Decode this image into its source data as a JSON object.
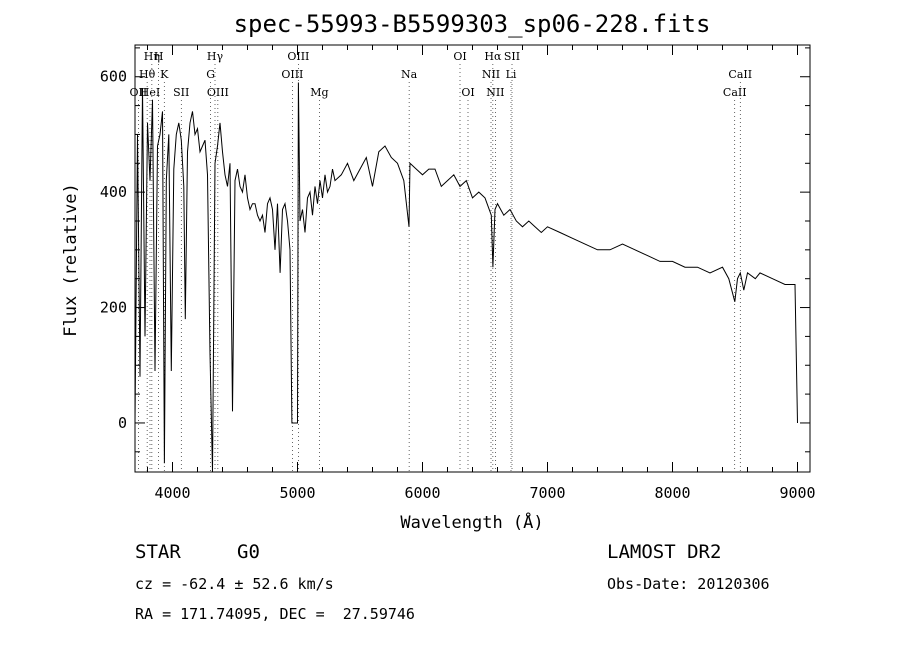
{
  "chart_data": {
    "type": "line",
    "title": "spec-55993-B5599303_sp06-228.fits",
    "xlabel": "Wavelength (Å)",
    "ylabel": "Flux (relative)",
    "xlim": [
      3700,
      9100
    ],
    "ylim": [
      -85,
      655
    ],
    "xticks": [
      4000,
      5000,
      6000,
      7000,
      8000,
      9000
    ],
    "yticks": [
      0,
      200,
      400,
      600
    ],
    "grid": false,
    "series": [
      {
        "x": [
          3700,
          3720,
          3740,
          3760,
          3780,
          3800,
          3820,
          3840,
          3860,
          3880,
          3900,
          3920,
          3935,
          3950,
          3970,
          3990,
          4010,
          4030,
          4050,
          4070,
          4090,
          4102,
          4120,
          4140,
          4160,
          4180,
          4200,
          4220,
          4240,
          4260,
          4280,
          4300,
          4320,
          4340,
          4360,
          4380,
          4400,
          4420,
          4440,
          4460,
          4480,
          4500,
          4520,
          4540,
          4560,
          4580,
          4600,
          4620,
          4640,
          4660,
          4680,
          4700,
          4720,
          4740,
          4760,
          4780,
          4800,
          4820,
          4840,
          4861,
          4880,
          4900,
          4920,
          4940,
          4955,
          4965,
          4980,
          5000,
          5007,
          5020,
          5040,
          5060,
          5080,
          5100,
          5120,
          5140,
          5160,
          5180,
          5200,
          5220,
          5240,
          5260,
          5280,
          5300,
          5350,
          5400,
          5450,
          5500,
          5550,
          5600,
          5650,
          5700,
          5750,
          5800,
          5850,
          5892,
          5900,
          5950,
          6000,
          6050,
          6100,
          6150,
          6200,
          6250,
          6300,
          6350,
          6400,
          6450,
          6500,
          6550,
          6563,
          6580,
          6600,
          6650,
          6700,
          6750,
          6800,
          6850,
          6900,
          6950,
          7000,
          7100,
          7200,
          7300,
          7400,
          7500,
          7600,
          7700,
          7800,
          7900,
          8000,
          8100,
          8200,
          8300,
          8400,
          8450,
          8498,
          8520,
          8542,
          8570,
          8600,
          8662,
          8700,
          8800,
          8900,
          8950,
          8980,
          9000
        ],
        "y": [
          0,
          500,
          80,
          580,
          150,
          520,
          420,
          560,
          90,
          480,
          500,
          540,
          -70,
          420,
          500,
          90,
          440,
          500,
          520,
          490,
          410,
          180,
          470,
          520,
          540,
          500,
          510,
          470,
          480,
          490,
          430,
          120,
          -90,
          450,
          480,
          520,
          470,
          430,
          410,
          450,
          20,
          420,
          440,
          410,
          400,
          430,
          390,
          370,
          380,
          380,
          360,
          350,
          360,
          330,
          380,
          390,
          370,
          300,
          380,
          260,
          370,
          380,
          350,
          300,
          0,
          0,
          0,
          0,
          590,
          350,
          370,
          330,
          390,
          400,
          360,
          410,
          380,
          420,
          390,
          430,
          400,
          410,
          440,
          420,
          430,
          450,
          420,
          440,
          460,
          410,
          470,
          480,
          460,
          450,
          420,
          340,
          450,
          440,
          430,
          440,
          440,
          410,
          420,
          430,
          410,
          420,
          390,
          400,
          390,
          360,
          270,
          370,
          380,
          360,
          370,
          350,
          340,
          350,
          340,
          330,
          340,
          330,
          320,
          310,
          300,
          300,
          310,
          300,
          290,
          280,
          280,
          270,
          270,
          260,
          270,
          250,
          210,
          250,
          260,
          230,
          260,
          250,
          260,
          250,
          240,
          240,
          240,
          0
        ]
      }
    ],
    "line_markers": [
      {
        "label": "Hη",
        "x": 3835,
        "row": 1
      },
      {
        "label": "H",
        "x": 3889,
        "row": 1
      },
      {
        "label": "Hθ",
        "x": 3797,
        "row": 2
      },
      {
        "label": "K",
        "x": 3934,
        "row": 2
      },
      {
        "label": "OII",
        "x": 3727,
        "row": 3
      },
      {
        "label": "HeI",
        "x": 3820,
        "row": 3
      },
      {
        "label": "SII",
        "x": 4070,
        "row": 3
      },
      {
        "label": "Hγ",
        "x": 4340,
        "row": 1
      },
      {
        "label": "G",
        "x": 4305,
        "row": 2
      },
      {
        "label": "OIII",
        "x": 4363,
        "row": 3
      },
      {
        "label": "OIII",
        "x": 5007,
        "row": 1
      },
      {
        "label": "OIII",
        "x": 4959,
        "row": 2
      },
      {
        "label": "Mg",
        "x": 5175,
        "row": 3
      },
      {
        "label": "Na",
        "x": 5893,
        "row": 2
      },
      {
        "label": "OI",
        "x": 6300,
        "row": 1
      },
      {
        "label": "OI",
        "x": 6364,
        "row": 3
      },
      {
        "label": "Hα",
        "x": 6563,
        "row": 1
      },
      {
        "label": "SII",
        "x": 6716,
        "row": 1
      },
      {
        "label": "NII",
        "x": 6548,
        "row": 2
      },
      {
        "label": "NII",
        "x": 6583,
        "row": 3
      },
      {
        "label": "Li",
        "x": 6708,
        "row": 2
      },
      {
        "label": "CaII",
        "x": 8542,
        "row": 2
      },
      {
        "label": "CaII",
        "x": 8498,
        "row": 3
      }
    ]
  },
  "footer": {
    "object_class": "STAR",
    "subclass": "G0",
    "survey": "LAMOST DR2",
    "redshift": "cz = -62.4 ± 52.6 km/s",
    "obs_date": "Obs-Date: 20120306",
    "coords": "RA = 171.74095, DEC =  27.59746"
  }
}
